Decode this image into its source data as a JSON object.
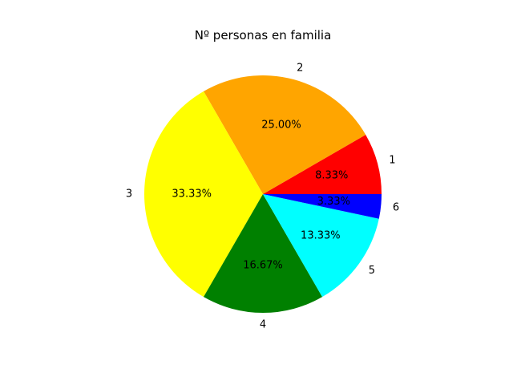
{
  "chart_data": {
    "type": "pie",
    "title": "Nº personas en familia",
    "categories": [
      "1",
      "2",
      "3",
      "4",
      "5",
      "6"
    ],
    "values": [
      8.33,
      25.0,
      33.33,
      16.67,
      13.33,
      3.33
    ],
    "percent_labels": [
      "8.33%",
      "25.00%",
      "33.33%",
      "16.67%",
      "13.33%",
      "3.33%"
    ],
    "colors": [
      "#ff0000",
      "#ffa500",
      "#ffff00",
      "#008000",
      "#00ffff",
      "#0000ff"
    ],
    "start_angle_deg": 0,
    "direction": "counterclockwise",
    "legend": "none"
  }
}
